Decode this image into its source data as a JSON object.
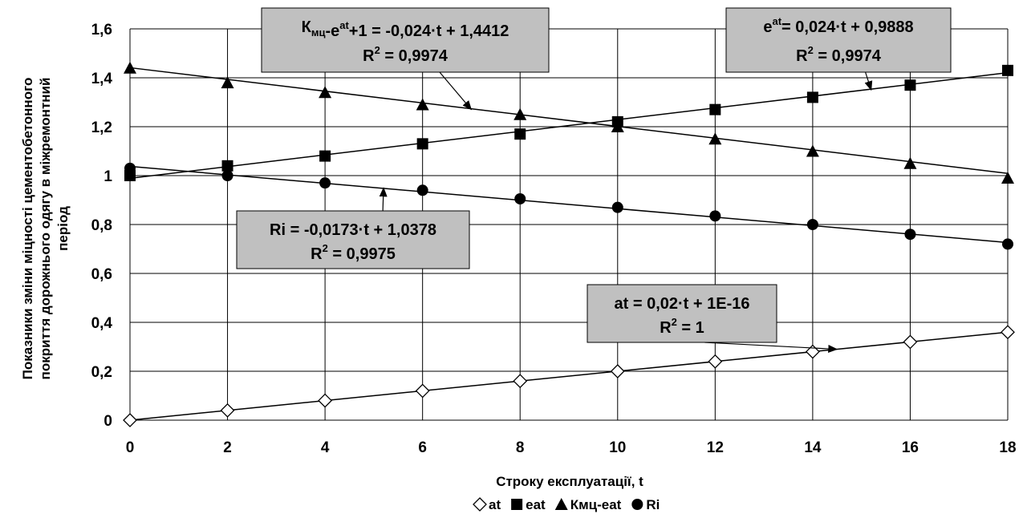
{
  "chart_data": {
    "type": "line",
    "title": "",
    "xlabel": "Строку експлуатації, t",
    "ylabel": [
      "Показники зміни міцності цементобетонного",
      "покриття дорожнього одягу  в міжремонтний",
      "період"
    ],
    "xlim": [
      0,
      18
    ],
    "ylim": [
      0,
      1.6
    ],
    "x_ticks": [
      0,
      2,
      4,
      6,
      8,
      10,
      12,
      14,
      16,
      18
    ],
    "x_tick_labels": [
      "0",
      "2",
      "4",
      "6",
      "8",
      "10",
      "12",
      "14",
      "16",
      "18"
    ],
    "y_ticks": [
      0,
      0.2,
      0.4,
      0.6,
      0.8,
      1,
      1.2,
      1.4,
      1.6
    ],
    "y_tick_labels": [
      "0",
      "0,2",
      "0,4",
      "0,6",
      "0,8",
      "1",
      "1,2",
      "1,4",
      "1,6"
    ],
    "grid": true,
    "legend_position": "bottom",
    "x": [
      0,
      2,
      4,
      6,
      8,
      10,
      12,
      14,
      16,
      18
    ],
    "series": [
      {
        "name": "at",
        "marker": "diamond-open",
        "values": [
          0,
          0.04,
          0.08,
          0.12,
          0.16,
          0.2,
          0.24,
          0.28,
          0.32,
          0.36
        ],
        "trend": {
          "slope": 0.02,
          "intercept": 0
        }
      },
      {
        "name": "eat",
        "marker": "square",
        "values": [
          1.0,
          1.04,
          1.08,
          1.13,
          1.17,
          1.22,
          1.27,
          1.32,
          1.37,
          1.43
        ],
        "trend": {
          "slope": 0.024,
          "intercept": 0.9888
        }
      },
      {
        "name": "Кмц-eat",
        "marker": "triangle",
        "values": [
          1.44,
          1.38,
          1.34,
          1.29,
          1.25,
          1.2,
          1.15,
          1.1,
          1.05,
          0.99
        ],
        "trend": {
          "slope": -0.024,
          "intercept": 1.4412
        }
      },
      {
        "name": "Ri",
        "marker": "circle",
        "values": [
          1.03,
          1.0,
          0.97,
          0.94,
          0.905,
          0.87,
          0.835,
          0.8,
          0.76,
          0.72
        ],
        "trend": {
          "slope": -0.0173,
          "intercept": 1.0378
        }
      }
    ],
    "annotations": [
      {
        "id": "kmc",
        "line1_base": "К",
        "line1_sub": "мц",
        "line1_mid": "-e",
        "line1_sup": "at",
        "line1_rest": "+1 = -0,024·t + 1,4412",
        "line2_base": "R",
        "line2_sup": "2",
        "line2_rest": " = 0,9974",
        "arrow_to": [
          7,
          1.27
        ]
      },
      {
        "id": "eat",
        "line1_base": "e",
        "line1_sup": "at",
        "line1_rest": "= 0,024·t + 0,9888",
        "line2_base": "R",
        "line2_sup": "2",
        "line2_rest": " = 0,9974",
        "arrow_to": [
          15.2,
          1.35
        ]
      },
      {
        "id": "ri",
        "line1_base": "Ri = -0,0173·t + 1,0378",
        "line2_base": "R",
        "line2_sup": "2",
        "line2_rest": " = 0,9975",
        "arrow_to": [
          5.2,
          0.95
        ]
      },
      {
        "id": "at",
        "line1_base": "at = 0,02·t + 1E-16",
        "line2_base": "R",
        "line2_sup": "2",
        "line2_rest": " = 1",
        "arrow_to": [
          14.5,
          0.29
        ]
      }
    ],
    "colors": {
      "line": "#000000",
      "grid": "#000000",
      "annotation_fill": "#c0c0c0",
      "annotation_border": "#000000"
    }
  }
}
